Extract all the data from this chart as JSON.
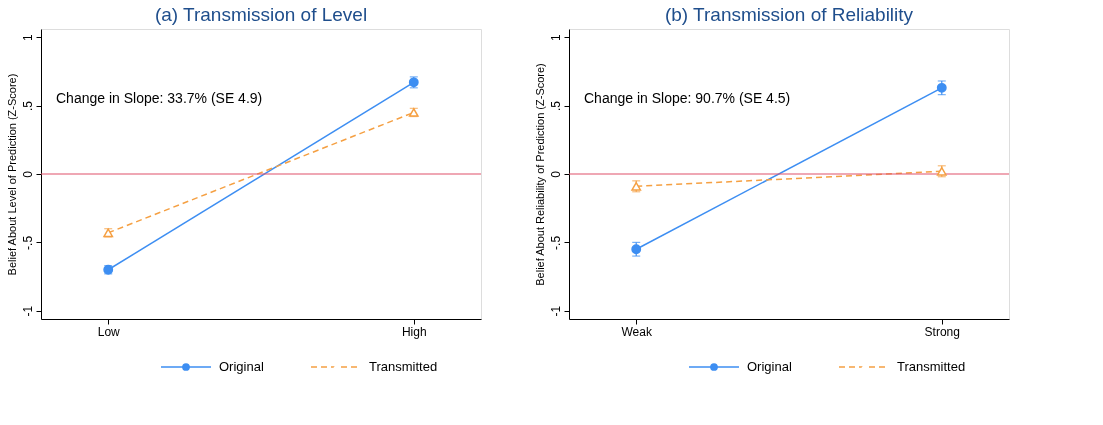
{
  "chart_data": [
    {
      "type": "line",
      "title": "(a) Transmission of Level",
      "ylabel": "Belief About Level of Prediction (Z-Score)",
      "categories": [
        "Low",
        "High"
      ],
      "series": [
        {
          "name": "Original",
          "color": "#3d8ef2",
          "values": [
            -0.7,
            0.67
          ],
          "errors": [
            0.03,
            0.04
          ],
          "marker": "circle",
          "line_style": "solid"
        },
        {
          "name": "Transmitted",
          "color": "#f5a043",
          "values": [
            -0.43,
            0.45
          ],
          "errors": [
            0.03,
            0.03
          ],
          "marker": "triangle",
          "line_style": "dashed"
        }
      ],
      "ylim": [
        -1.06,
        1.06
      ],
      "yticks": [
        {
          "value": -1,
          "label": "-1"
        },
        {
          "value": -0.5,
          "label": "-.5"
        },
        0,
        {
          "value": 0.5,
          "label": ".5"
        },
        1
      ],
      "ref_lines": [
        {
          "axis": "y",
          "value": 0,
          "label": null,
          "color": "#e0506a"
        }
      ],
      "annotations": [
        "Change in Slope: 33.7% (SE 4.9)"
      ],
      "grid": false,
      "legend": "bottom"
    },
    {
      "type": "line",
      "title": "(b) Transmission of Reliability",
      "ylabel": "Belief About Reliability of Prediction (Z-Score)",
      "categories": [
        "Weak",
        "Strong"
      ],
      "series": [
        {
          "name": "Original",
          "color": "#3d8ef2",
          "values": [
            -0.55,
            0.63
          ],
          "errors": [
            0.05,
            0.05
          ],
          "marker": "circle",
          "line_style": "solid"
        },
        {
          "name": "Transmitted",
          "color": "#f5a043",
          "values": [
            -0.09,
            0.02
          ],
          "errors": [
            0.04,
            0.04
          ],
          "marker": "triangle",
          "line_style": "dashed"
        }
      ],
      "ylim": [
        -1.06,
        1.06
      ],
      "yticks": [
        {
          "value": -1,
          "label": "-1"
        },
        {
          "value": -0.5,
          "label": "-.5"
        },
        0,
        {
          "value": 0.5,
          "label": ".5"
        },
        1
      ],
      "ref_lines": [
        {
          "axis": "y",
          "value": 0,
          "label": null,
          "color": "#e0506a"
        }
      ],
      "annotations": [
        "Change in Slope: 90.7% (SE 4.5)"
      ],
      "grid": false,
      "legend": "bottom"
    }
  ]
}
